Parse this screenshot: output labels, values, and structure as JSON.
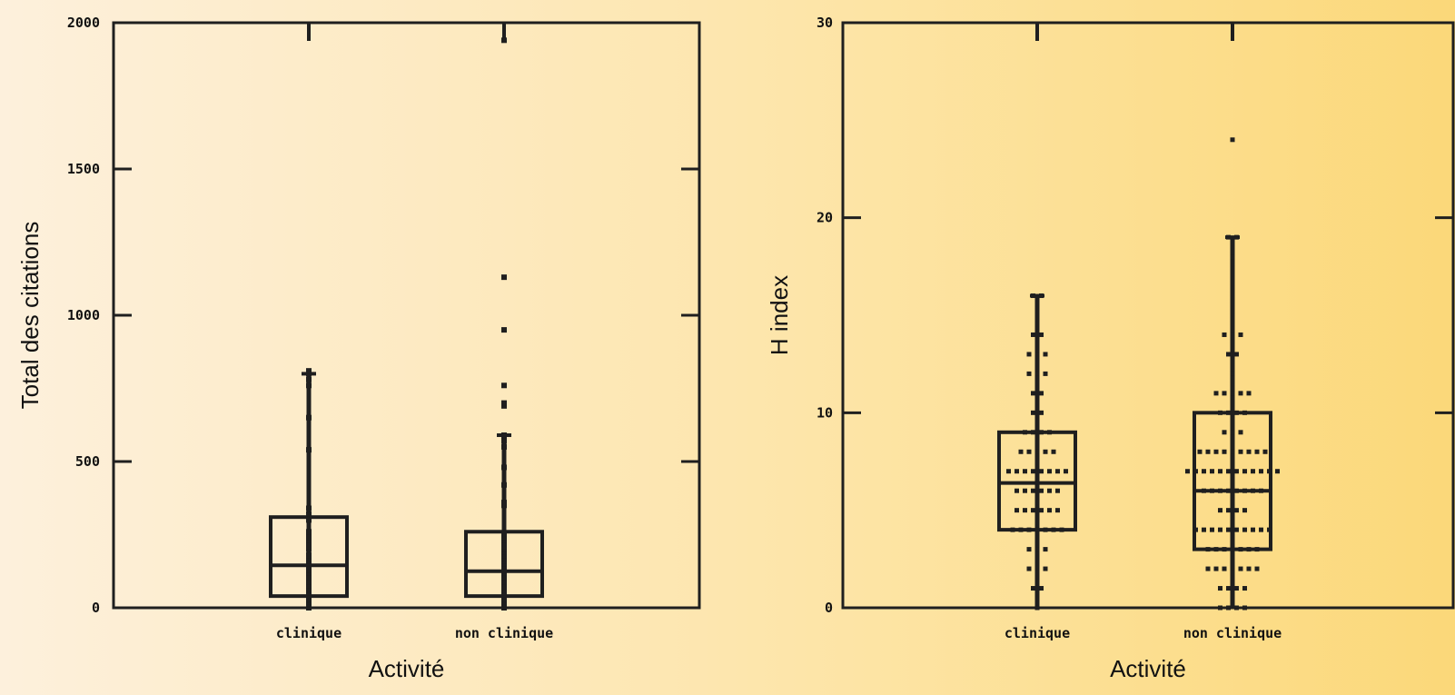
{
  "chart_data": [
    {
      "type": "box",
      "xlabel": "Activité",
      "ylabel": "Total des citations",
      "ylim": [
        0,
        2000
      ],
      "yticks": [
        0,
        500,
        1000,
        1500,
        2000
      ],
      "ytick_labels": [
        "0",
        "500",
        "1000",
        "1500",
        "2000"
      ],
      "categories": [
        "clinique",
        "non clinique"
      ],
      "boxes": [
        {
          "q1": 40,
          "median": 145,
          "q3": 310,
          "whisker_low": 0,
          "whisker_high": 800,
          "points": [
            0,
            5,
            10,
            15,
            20,
            25,
            30,
            35,
            40,
            45,
            50,
            55,
            60,
            65,
            70,
            75,
            80,
            90,
            100,
            110,
            120,
            130,
            140,
            150,
            160,
            170,
            180,
            200,
            210,
            220,
            230,
            240,
            250,
            260,
            300,
            320,
            340,
            540,
            650,
            760,
            780,
            800,
            810
          ]
        },
        {
          "q1": 40,
          "median": 125,
          "q3": 260,
          "whisker_low": 0,
          "whisker_high": 590,
          "points": [
            0,
            5,
            10,
            15,
            20,
            25,
            30,
            35,
            40,
            45,
            50,
            55,
            60,
            70,
            80,
            90,
            100,
            110,
            120,
            130,
            140,
            150,
            160,
            170,
            180,
            190,
            200,
            210,
            220,
            230,
            240,
            250,
            350,
            360,
            420,
            480,
            550,
            570,
            580,
            590,
            690,
            700,
            760,
            950,
            1130,
            1940
          ]
        }
      ]
    },
    {
      "type": "box",
      "xlabel": "Activité",
      "ylabel": "H  index",
      "ylim": [
        0,
        30
      ],
      "yticks": [
        0,
        10,
        20,
        30
      ],
      "ytick_labels": [
        "0",
        "10",
        "20",
        "30"
      ],
      "categories": [
        "clinique",
        "non clinique"
      ],
      "boxes": [
        {
          "q1": 4,
          "median": 6.4,
          "q3": 9,
          "whisker_low": 0,
          "whisker_high": 16,
          "points": [
            {
              "y": 0,
              "n": 1
            },
            {
              "y": 1,
              "n": 2
            },
            {
              "y": 2,
              "n": 3
            },
            {
              "y": 3,
              "n": 3
            },
            {
              "y": 4,
              "n": 7
            },
            {
              "y": 5,
              "n": 6
            },
            {
              "y": 6,
              "n": 6
            },
            {
              "y": 7,
              "n": 8
            },
            {
              "y": 8,
              "n": 5
            },
            {
              "y": 9,
              "n": 4
            },
            {
              "y": 10,
              "n": 2
            },
            {
              "y": 11,
              "n": 2
            },
            {
              "y": 12,
              "n": 3
            },
            {
              "y": 13,
              "n": 3
            },
            {
              "y": 14,
              "n": 2
            },
            {
              "y": 15,
              "n": 1
            },
            {
              "y": 16,
              "n": 2
            }
          ]
        },
        {
          "q1": 3,
          "median": 6,
          "q3": 10,
          "whisker_low": 0,
          "whisker_high": 19,
          "points": [
            {
              "y": 0,
              "n": 4
            },
            {
              "y": 1,
              "n": 4
            },
            {
              "y": 2,
              "n": 7
            },
            {
              "y": 3,
              "n": 7
            },
            {
              "y": 4,
              "n": 10
            },
            {
              "y": 5,
              "n": 4
            },
            {
              "y": 6,
              "n": 8
            },
            {
              "y": 7,
              "n": 12
            },
            {
              "y": 8,
              "n": 9
            },
            {
              "y": 9,
              "n": 3
            },
            {
              "y": 10,
              "n": 4
            },
            {
              "y": 11,
              "n": 5
            },
            {
              "y": 12,
              "n": 1
            },
            {
              "y": 13,
              "n": 2
            },
            {
              "y": 14,
              "n": 3
            },
            {
              "y": 15,
              "n": 1
            },
            {
              "y": 18,
              "n": 1
            },
            {
              "y": 19,
              "n": 2
            },
            {
              "y": 24,
              "n": 1
            }
          ]
        }
      ]
    }
  ]
}
